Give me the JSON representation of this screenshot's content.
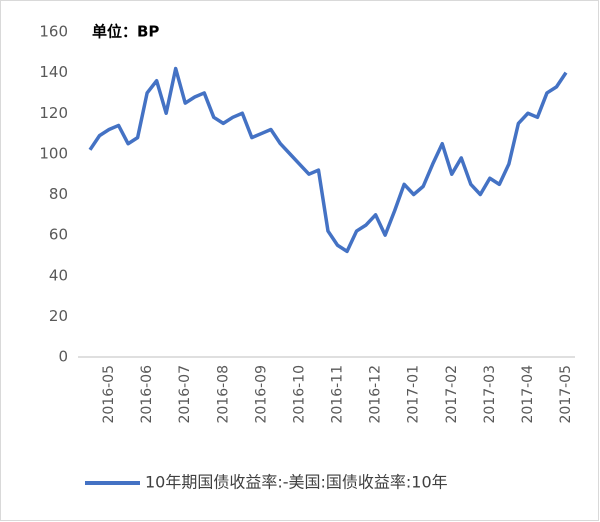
{
  "chart_data": {
    "type": "line",
    "annotation": "单位：BP",
    "categories": [
      null,
      null,
      "2016-05",
      null,
      null,
      null,
      "2016-06",
      null,
      null,
      null,
      "2016-07",
      null,
      null,
      null,
      "2016-08",
      null,
      null,
      null,
      "2016-09",
      null,
      null,
      null,
      "2016-10",
      null,
      null,
      null,
      "2016-11",
      null,
      null,
      null,
      "2016-12",
      null,
      null,
      null,
      "2017-01",
      null,
      null,
      null,
      "2017-02",
      null,
      null,
      null,
      "2017-03",
      null,
      null,
      null,
      "2017-04",
      null,
      null,
      null,
      "2017-05"
    ],
    "series": [
      {
        "name": "10年期国债收益率:-美国:国债收益率:10年",
        "color": "#4472c4",
        "values": [
          102,
          109,
          112,
          114,
          105,
          108,
          130,
          136,
          120,
          142,
          125,
          128,
          130,
          118,
          115,
          118,
          120,
          108,
          110,
          112,
          105,
          100,
          95,
          90,
          92,
          62,
          55,
          52,
          62,
          65,
          70,
          60,
          72,
          85,
          80,
          84,
          95,
          105,
          90,
          98,
          85,
          80,
          88,
          85,
          95,
          115,
          120,
          118,
          130,
          133,
          140
        ]
      }
    ],
    "ylim": [
      0,
      160
    ],
    "yticks": [
      0,
      20,
      40,
      60,
      80,
      100,
      120,
      140,
      160
    ],
    "grid": false,
    "legend": "bottom"
  }
}
